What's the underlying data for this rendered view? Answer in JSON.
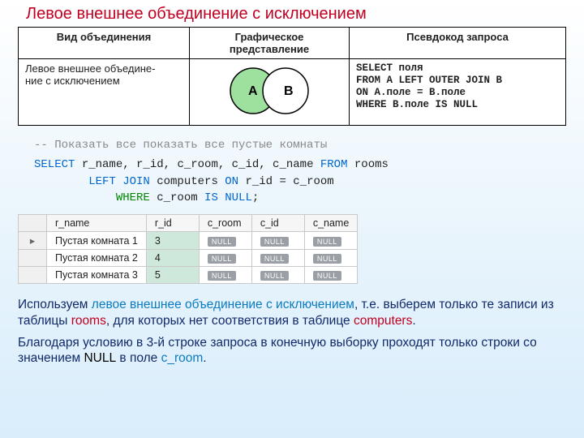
{
  "title": "Левое внешнее объединение с исключением",
  "def_table": {
    "headers": [
      "Вид объединения",
      "Графическое представление",
      "Псевдокод запроса"
    ],
    "row": {
      "kind": "Левое внешнее объедине-\nние с исключением",
      "pseudo": "SELECT поля\nFROM A LEFT OUTER JOIN B\nON A.поле = B.поле\nWHERE B.поле IS NULL"
    },
    "venn": {
      "a_label": "A",
      "b_label": "B",
      "a_fill": "#9ee09e",
      "b_fill": "#ffffff",
      "overlap_fill": "#ffffff",
      "stroke": "#000000"
    }
  },
  "sql": {
    "comment": "-- Показать все показать все пустые комнаты",
    "l1_a": "SELECT",
    "l1_b": "  r_name, r_id, c_room, c_id,  c_name ",
    "l1_c": "FROM",
    "l1_d": " rooms",
    "l2_a": "        LEFT JOIN",
    "l2_b": " computers ",
    "l2_c": "ON",
    "l2_d": " r_id = c_room",
    "l3_a": "            WHERE",
    "l3_b": " c_room ",
    "l3_c": "IS NULL",
    "l3_d": ";"
  },
  "result": {
    "headers": [
      "",
      "r_name",
      "r_id",
      "c_room",
      "c_id",
      "c_name"
    ],
    "rows": [
      {
        "mark": "▸",
        "r_name": "Пустая комната 1",
        "r_id": "3"
      },
      {
        "mark": "",
        "r_name": "Пустая комната 2",
        "r_id": "4"
      },
      {
        "mark": "",
        "r_name": "Пустая комната 3",
        "r_id": "5"
      }
    ],
    "null_label": "NULL"
  },
  "p1": {
    "a": "Используем ",
    "b": "левое внешнее объединение с исключением",
    "c": ", т.е. выберем только те записи из таблицы ",
    "d": "rooms",
    "e": ", для которых нет соответствия в таблице ",
    "f": "computers",
    "g": "."
  },
  "p2": {
    "a": "Благодаря условию в 3-й строке запроса в конечную выборку проходят только строки со значением ",
    "b": "NULL",
    "c": " в поле ",
    "d": "c_room",
    "e": "."
  }
}
